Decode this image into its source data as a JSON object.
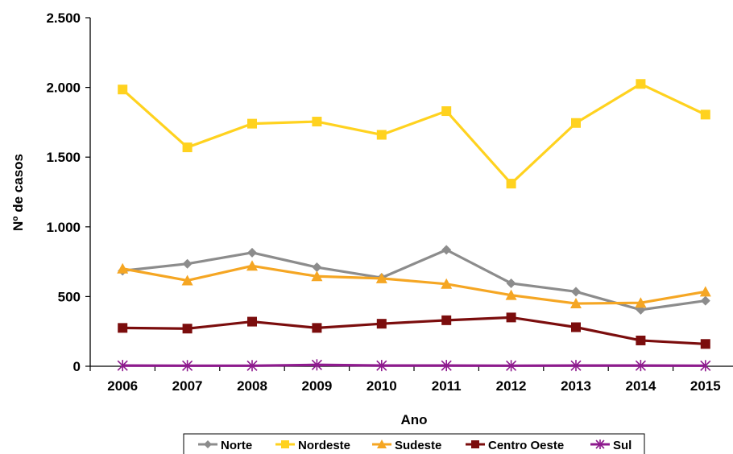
{
  "chart_data": {
    "type": "line",
    "title": "",
    "xlabel": "Ano",
    "ylabel": "Nº de casos",
    "ylim": [
      0,
      2500
    ],
    "y_ticks": [
      0,
      500,
      1000,
      1500,
      2000,
      2500
    ],
    "y_tick_labels": [
      "0",
      "500",
      "1.000",
      "1.500",
      "2.000",
      "2.500"
    ],
    "categories": [
      "2006",
      "2007",
      "2008",
      "2009",
      "2010",
      "2011",
      "2012",
      "2013",
      "2014",
      "2015"
    ],
    "grid": false,
    "legend_position": "bottom",
    "series": [
      {
        "name": "Norte",
        "color": "#8c8c8c",
        "marker": "diamond",
        "values": [
          685,
          735,
          815,
          710,
          635,
          835,
          595,
          535,
          405,
          470
        ]
      },
      {
        "name": "Nordeste",
        "color": "#ffd21f",
        "marker": "square",
        "values": [
          1985,
          1570,
          1740,
          1755,
          1660,
          1830,
          1310,
          1745,
          2025,
          1805
        ]
      },
      {
        "name": "Sudeste",
        "color": "#f5a623",
        "marker": "triangle",
        "values": [
          700,
          615,
          720,
          645,
          630,
          590,
          510,
          450,
          455,
          535
        ]
      },
      {
        "name": "Centro Oeste",
        "color": "#7b0d0d",
        "marker": "square",
        "values": [
          275,
          270,
          320,
          275,
          305,
          330,
          350,
          280,
          185,
          160
        ]
      },
      {
        "name": "Sul",
        "color": "#8e1a8e",
        "marker": "star",
        "values": [
          5,
          4,
          4,
          10,
          5,
          5,
          4,
          5,
          5,
          4
        ]
      }
    ]
  }
}
